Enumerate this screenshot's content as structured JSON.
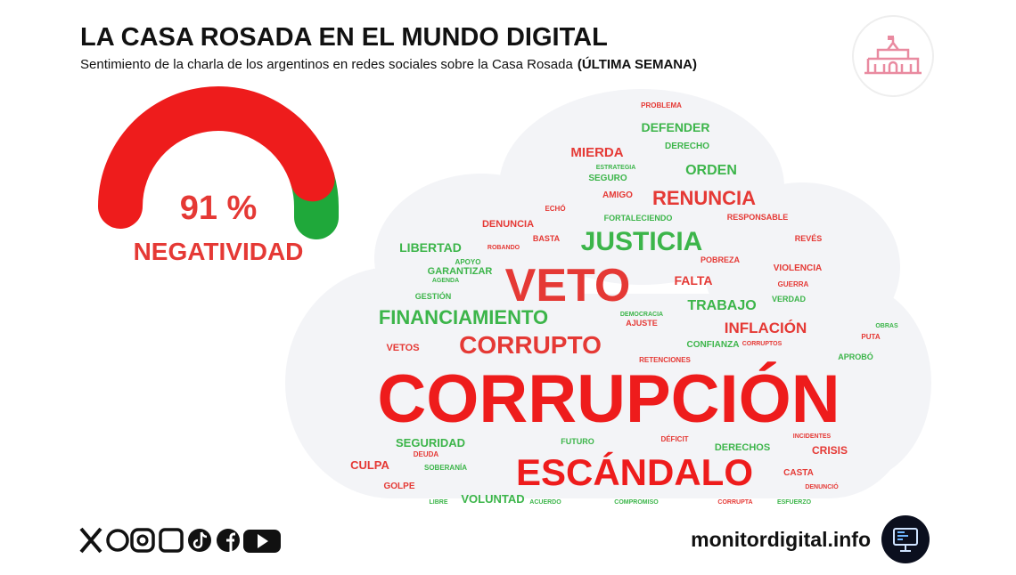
{
  "header": {
    "title": "LA CASA ROSADA EN EL MUNDO DIGITAL",
    "subtitle": "Sentimiento de la charla de los argentinos en redes sociales sobre la Casa Rosada",
    "subtitle_bold": "(ÚLTIMA SEMANA)"
  },
  "gauge": {
    "value": 91,
    "label": "91 %",
    "caption": "NEGATIVIDAD",
    "scale": [
      0,
      100
    ],
    "color": "#ee1c1c",
    "rest_color": "#1fa83a"
  },
  "word_cloud": {
    "words": [
      {
        "text": "PROBLEMA",
        "color": "#e53935"
      },
      {
        "text": "DEFENDER",
        "color": "#3cb54a"
      },
      {
        "text": "DERECHO",
        "color": "#3cb54a"
      },
      {
        "text": "MIERDA",
        "color": "#e53935"
      },
      {
        "text": "ORDEN",
        "color": "#3cb54a"
      },
      {
        "text": "SEGURO",
        "color": "#3cb54a"
      },
      {
        "text": "ESTRATEGIA",
        "color": "#3cb54a"
      },
      {
        "text": "AMIGO",
        "color": "#e53935"
      },
      {
        "text": "RENUNCIA",
        "color": "#e53935"
      },
      {
        "text": "ECHÓ",
        "color": "#e53935"
      },
      {
        "text": "FORTALECIENDO",
        "color": "#3cb54a"
      },
      {
        "text": "RESPONSABLE",
        "color": "#e53935"
      },
      {
        "text": "DENUNCIA",
        "color": "#e53935"
      },
      {
        "text": "JUSTICIA",
        "color": "#3cb54a"
      },
      {
        "text": "BASTA",
        "color": "#e53935"
      },
      {
        "text": "REVÉS",
        "color": "#e53935"
      },
      {
        "text": "LIBERTAD",
        "color": "#3cb54a"
      },
      {
        "text": "ROBANDO",
        "color": "#e53935"
      },
      {
        "text": "POBREZA",
        "color": "#e53935"
      },
      {
        "text": "APOYO",
        "color": "#3cb54a"
      },
      {
        "text": "VIOLENCIA",
        "color": "#e53935"
      },
      {
        "text": "GARANTIZAR",
        "color": "#3cb54a"
      },
      {
        "text": "VETO",
        "color": "#e53935"
      },
      {
        "text": "FALTA",
        "color": "#e53935"
      },
      {
        "text": "AGENDA",
        "color": "#3cb54a"
      },
      {
        "text": "GUERRA",
        "color": "#e53935"
      },
      {
        "text": "GESTIÓN",
        "color": "#3cb54a"
      },
      {
        "text": "VERDAD",
        "color": "#3cb54a"
      },
      {
        "text": "TRABAJO",
        "color": "#3cb54a"
      },
      {
        "text": "FINANCIAMIENTO",
        "color": "#3cb54a"
      },
      {
        "text": "DEMOCRACIA",
        "color": "#3cb54a"
      },
      {
        "text": "AJUSTE",
        "color": "#e53935"
      },
      {
        "text": "INFLACIÓN",
        "color": "#e53935"
      },
      {
        "text": "PUTA",
        "color": "#e53935"
      },
      {
        "text": "OBRAS",
        "color": "#3cb54a"
      },
      {
        "text": "CORRUPTO",
        "color": "#e53935"
      },
      {
        "text": "VETOS",
        "color": "#e53935"
      },
      {
        "text": "CONFIANZA",
        "color": "#3cb54a"
      },
      {
        "text": "CORRUPTOS",
        "color": "#e53935"
      },
      {
        "text": "APROBÓ",
        "color": "#3cb54a"
      },
      {
        "text": "RETENCIONES",
        "color": "#e53935"
      },
      {
        "text": "CORRUPCIÓN",
        "color": "#ee1c1c"
      },
      {
        "text": "SEGURIDAD",
        "color": "#3cb54a"
      },
      {
        "text": "DÉFICIT",
        "color": "#e53935"
      },
      {
        "text": "FUTURO",
        "color": "#3cb54a"
      },
      {
        "text": "INCIDENTES",
        "color": "#e53935"
      },
      {
        "text": "DERECHOS",
        "color": "#3cb54a"
      },
      {
        "text": "CRISIS",
        "color": "#e53935"
      },
      {
        "text": "CULPA",
        "color": "#e53935"
      },
      {
        "text": "ESCÁNDALO",
        "color": "#ee1c1c"
      },
      {
        "text": "DEUDA",
        "color": "#e53935"
      },
      {
        "text": "SOBERANÍA",
        "color": "#3cb54a"
      },
      {
        "text": "CASTA",
        "color": "#e53935"
      },
      {
        "text": "GOLPE",
        "color": "#e53935"
      },
      {
        "text": "DENUNCIÓ",
        "color": "#e53935"
      },
      {
        "text": "VOLUNTAD",
        "color": "#3cb54a"
      },
      {
        "text": "ACUERDO",
        "color": "#3cb54a"
      },
      {
        "text": "COMPROMISO",
        "color": "#3cb54a"
      },
      {
        "text": "CORRUPTA",
        "color": "#e53935"
      },
      {
        "text": "ESFUERZO",
        "color": "#3cb54a"
      },
      {
        "text": "LIBRE",
        "color": "#3cb54a"
      }
    ]
  },
  "footer": {
    "site": "monitordigital.info"
  }
}
